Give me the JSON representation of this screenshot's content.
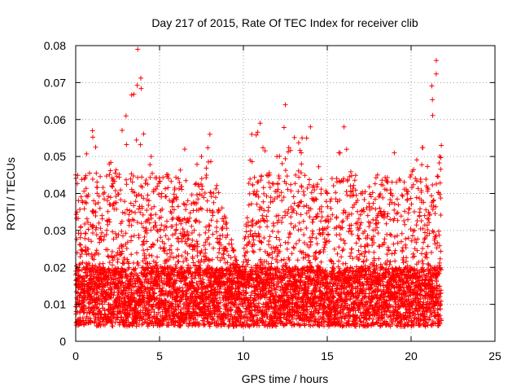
{
  "chart_data": {
    "type": "scatter",
    "title": "Day 217 of 2015, Rate Of TEC Index for receiver clib",
    "xlabel": "GPS time / hours",
    "ylabel": "ROTI / TECUs",
    "xlim": [
      0,
      25
    ],
    "ylim": [
      0,
      0.08
    ],
    "x_ticks": [
      0,
      5,
      10,
      15,
      20,
      25
    ],
    "x_tick_labels": [
      "0",
      "5",
      "10",
      "15",
      "20",
      "25"
    ],
    "y_ticks": [
      0,
      0.01,
      0.02,
      0.03,
      0.04,
      0.05,
      0.06,
      0.07,
      0.08
    ],
    "y_tick_labels": [
      "0",
      "0.01",
      "0.02",
      "0.03",
      "0.04",
      "0.05",
      "0.06",
      "0.07",
      "0.08"
    ],
    "grid": true,
    "marker": "plus",
    "color": "#ff0000",
    "data_x_range": [
      0,
      21.8
    ],
    "envelope": [
      {
        "x": 0.0,
        "max": 0.045
      },
      {
        "x": 1.0,
        "max": 0.057
      },
      {
        "x": 2.0,
        "max": 0.048
      },
      {
        "x": 3.0,
        "max": 0.061
      },
      {
        "x": 3.7,
        "max": 0.079
      },
      {
        "x": 4.5,
        "max": 0.05
      },
      {
        "x": 5.5,
        "max": 0.045
      },
      {
        "x": 6.5,
        "max": 0.052
      },
      {
        "x": 7.5,
        "max": 0.05
      },
      {
        "x": 8.0,
        "max": 0.056
      },
      {
        "x": 9.0,
        "max": 0.032
      },
      {
        "x": 9.9,
        "max": 0.018
      },
      {
        "x": 10.5,
        "max": 0.056
      },
      {
        "x": 11.0,
        "max": 0.059
      },
      {
        "x": 12.0,
        "max": 0.05
      },
      {
        "x": 12.5,
        "max": 0.064
      },
      {
        "x": 13.5,
        "max": 0.055
      },
      {
        "x": 14.0,
        "max": 0.058
      },
      {
        "x": 15.0,
        "max": 0.04
      },
      {
        "x": 16.0,
        "max": 0.058
      },
      {
        "x": 17.0,
        "max": 0.04
      },
      {
        "x": 18.0,
        "max": 0.045
      },
      {
        "x": 19.0,
        "max": 0.051
      },
      {
        "x": 20.0,
        "max": 0.045
      },
      {
        "x": 21.5,
        "max": 0.076
      },
      {
        "x": 21.8,
        "max": 0.053
      }
    ],
    "baseline_min": 0.004
  }
}
